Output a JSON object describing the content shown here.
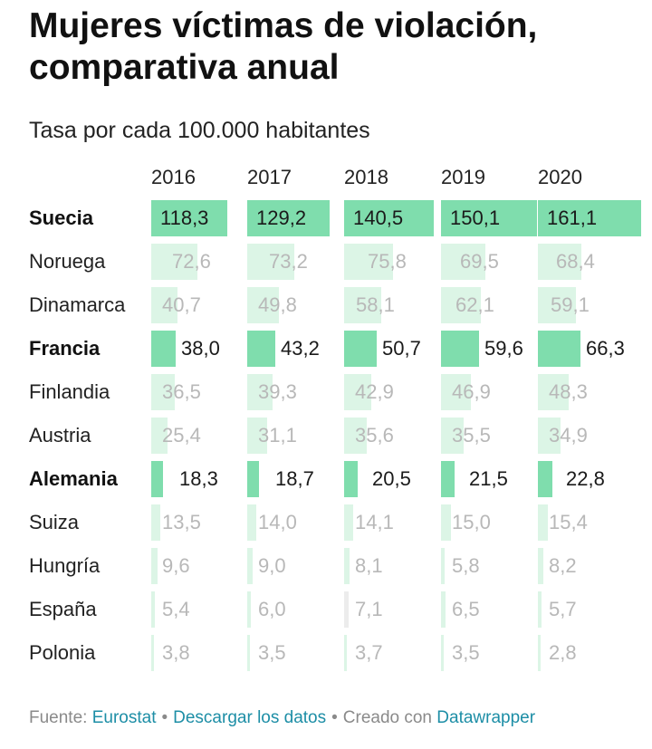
{
  "title": "Mujeres víctimas de violación, comparativa anual",
  "subtitle": "Tasa por cada 100.000 habitantes",
  "chart_data": {
    "type": "table",
    "title": "Mujeres víctimas de violación, comparativa anual",
    "subtitle": "Tasa por cada 100.000 habitantes",
    "columns": [
      "2016",
      "2017",
      "2018",
      "2019",
      "2020"
    ],
    "rows": [
      {
        "country": "Suecia",
        "highlight": true,
        "values": [
          "118,3",
          "129,2",
          "140,5",
          "150,1",
          "161,1"
        ]
      },
      {
        "country": "Noruega",
        "highlight": false,
        "values": [
          "72,6",
          "73,2",
          "75,8",
          "69,5",
          "68,4"
        ]
      },
      {
        "country": "Dinamarca",
        "highlight": false,
        "values": [
          "40,7",
          "49,8",
          "58,1",
          "62,1",
          "59,1"
        ]
      },
      {
        "country": "Francia",
        "highlight": true,
        "values": [
          "38,0",
          "43,2",
          "50,7",
          "59,6",
          "66,3"
        ]
      },
      {
        "country": "Finlandia",
        "highlight": false,
        "values": [
          "36,5",
          "39,3",
          "42,9",
          "46,9",
          "48,3"
        ]
      },
      {
        "country": "Austria",
        "highlight": false,
        "values": [
          "25,4",
          "31,1",
          "35,6",
          "35,5",
          "34,9"
        ]
      },
      {
        "country": "Alemania",
        "highlight": true,
        "values": [
          "18,3",
          "18,7",
          "20,5",
          "21,5",
          "22,8"
        ]
      },
      {
        "country": "Suiza",
        "highlight": false,
        "values": [
          "13,5",
          "14,0",
          "14,1",
          "15,0",
          "15,4"
        ]
      },
      {
        "country": "Hungría",
        "highlight": false,
        "values": [
          "9,6",
          "9,0",
          "8,1",
          "5,8",
          "8,2"
        ]
      },
      {
        "country": "España",
        "highlight": false,
        "values": [
          "5,4",
          "6,0",
          "7,1",
          "6,5",
          "5,7"
        ],
        "emphasis_column": "2018"
      },
      {
        "country": "Polonia",
        "highlight": false,
        "values": [
          "3,8",
          "3,5",
          "3,7",
          "3,5",
          "2,8"
        ]
      }
    ],
    "bar_max": 161.1,
    "colors": {
      "bar_highlight": "#7fddad",
      "bar_muted": "#dcf5e6",
      "bar_emphasis": "#ececec",
      "text_highlight": "#1a1a1a",
      "text_muted": "#b8b8b8"
    }
  },
  "footer": {
    "source_label": "Fuente:",
    "source_link": "Eurostat",
    "download_link": "Descargar los datos",
    "created_label": "Creado con",
    "created_link": "Datawrapper",
    "separator": "•"
  }
}
